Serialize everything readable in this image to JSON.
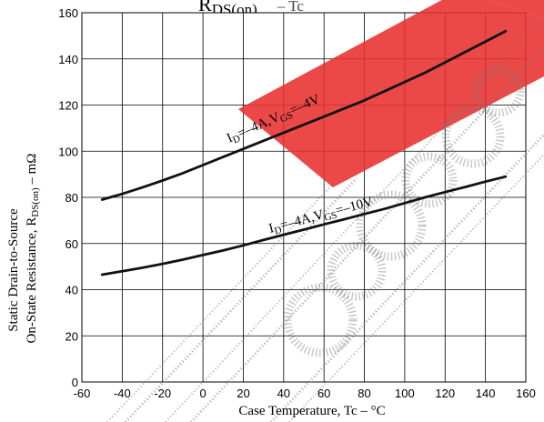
{
  "chart_data": {
    "type": "line",
    "title_main": "R",
    "title_sub": "DS(on)",
    "title_tail": "– Tc",
    "xlabel": "Case Temperature, Tc  –  °C",
    "ylabel_line1": "Static Drain-to-Source",
    "ylabel_line2_main": "On-State Resistance, R",
    "ylabel_line2_sub": "DS(on)",
    "ylabel_line2_unit": " – mΩ",
    "xlim": [
      -60,
      160
    ],
    "ylim": [
      0,
      160
    ],
    "xticks": [
      -60,
      -40,
      -20,
      0,
      20,
      40,
      60,
      80,
      100,
      120,
      140,
      160
    ],
    "yticks": [
      0,
      20,
      40,
      60,
      80,
      100,
      120,
      140,
      160
    ],
    "grid": true,
    "series": [
      {
        "label_main": "I",
        "label_sub1": "D",
        "label_mid": "=–4A,V",
        "label_sub2": "GS",
        "label_tail": "=–4V",
        "x": [
          -50,
          -40,
          -30,
          -20,
          -10,
          0,
          10,
          20,
          30,
          40,
          50,
          60,
          70,
          80,
          90,
          100,
          110,
          120,
          130,
          140,
          150
        ],
        "y": [
          79,
          81.5,
          84.3,
          87.3,
          90.5,
          94,
          97.5,
          101,
          104.5,
          108,
          111.5,
          115,
          118.5,
          122,
          126,
          130,
          134,
          138.5,
          143,
          147.5,
          152
        ]
      },
      {
        "label_main": "I",
        "label_sub1": "D",
        "label_mid": "=–4A,V",
        "label_sub2": "GS",
        "label_tail": "=–10V",
        "x": [
          -50,
          -40,
          -30,
          -20,
          -10,
          0,
          10,
          20,
          30,
          40,
          50,
          60,
          70,
          80,
          90,
          100,
          110,
          120,
          130,
          140,
          150
        ],
        "y": [
          46.5,
          48,
          49.5,
          51.2,
          53,
          55,
          57,
          59.2,
          61.5,
          63.8,
          66,
          68.3,
          70.5,
          72.8,
          75,
          77.5,
          80,
          82.3,
          84.5,
          86.8,
          89
        ]
      }
    ]
  },
  "watermark": {
    "banner_color": "#e8302f",
    "stamp_color": "#777777"
  }
}
